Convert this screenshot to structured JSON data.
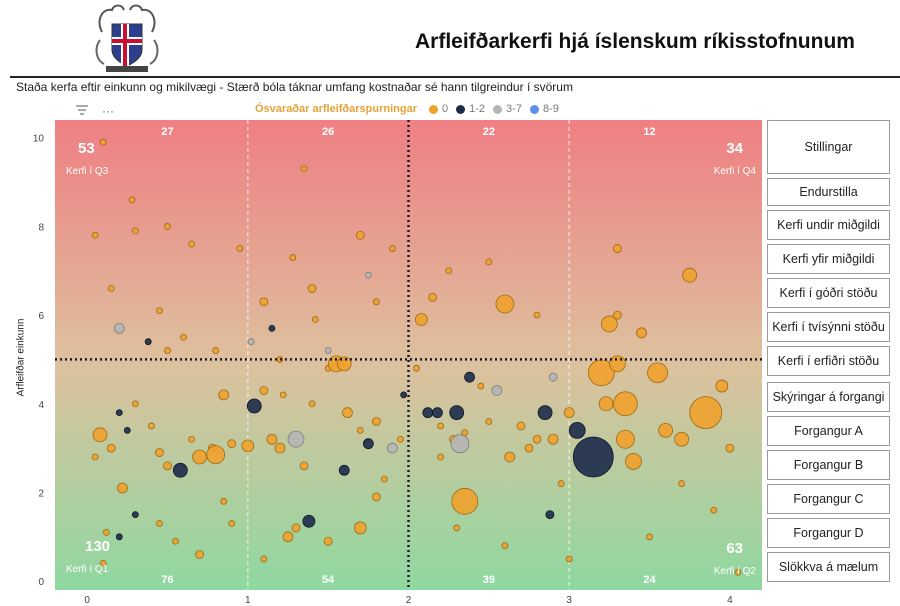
{
  "header": {
    "title": "Arfleifðarkerfi hjá íslenskum ríkisstofnunum",
    "subtitle": "Staða kerfa eftir einkunn og mikilvægi - Stærð bóla táknar umfang kostnaðar sé hann tilgreindur í svörum"
  },
  "toolbar": {
    "filter_icon": "filter-icon",
    "more_label": "···"
  },
  "legend": {
    "title": "Ósvaraðar arfleifðarspurningar",
    "items": [
      {
        "label": "0",
        "color": "#f0a12c"
      },
      {
        "label": "1-2",
        "color": "#1c2b4a"
      },
      {
        "label": "3-7",
        "color": "#b5b5b5"
      },
      {
        "label": "8-9",
        "color": "#5b8ff0"
      }
    ]
  },
  "quadrants": {
    "q3": {
      "count": "53",
      "label": "Kerfi í Q3"
    },
    "q4": {
      "count": "34",
      "label": "Kerfi í Q4"
    },
    "q1": {
      "count": "130",
      "label": "Kerfi í Q1"
    },
    "q2": {
      "count": "63",
      "label": "Kerfi í Q2"
    }
  },
  "buttons": [
    "Stillingar",
    "Endurstilla",
    "Kerfi undir miðgildi",
    "Kerfi yfir miðgildi",
    "Kerfi í góðri stöðu",
    "Kerfi í tvísýnni stöðu",
    "Kerfi í erfiðri stöðu",
    "Skýringar á forgangi",
    "Forgangur A",
    "Forgangur B",
    "Forgangur C",
    "Forgangur D",
    "Slökkva á mælum"
  ],
  "chart_data": {
    "type": "scatter",
    "ylabel": "Arfleifðar einkunn",
    "xlabel": "",
    "xlim": [
      -0.2,
      4.2
    ],
    "ylim": [
      -0.2,
      10.4
    ],
    "xticks": [
      "0",
      "1",
      "2",
      "3",
      "4"
    ],
    "yticks": [
      "0",
      "2",
      "4",
      "6",
      "8",
      "10"
    ],
    "median_x": 2,
    "median_y": 5,
    "top_counts": [
      "27",
      "26",
      "22",
      "12"
    ],
    "bottom_counts": [
      "76",
      "54",
      "39",
      "24"
    ],
    "colors": {
      "top": "#ef7f83",
      "mid": "#ddc19e",
      "bottom": "#8fd8a0",
      "orange": "#f0a12c",
      "navy": "#1c2b4a",
      "gray": "#b5b5b5"
    },
    "points": [
      [
        0.08,
        3.3,
        7,
        "o"
      ],
      [
        0.15,
        3.0,
        4,
        "o"
      ],
      [
        0.2,
        3.8,
        3,
        "n"
      ],
      [
        0.22,
        2.1,
        5,
        "o"
      ],
      [
        0.3,
        4.0,
        3,
        "o"
      ],
      [
        0.4,
        3.5,
        3,
        "o"
      ],
      [
        0.45,
        2.9,
        4,
        "o"
      ],
      [
        0.5,
        2.6,
        4,
        "o"
      ],
      [
        0.58,
        2.5,
        7,
        "n"
      ],
      [
        0.65,
        3.2,
        3,
        "o"
      ],
      [
        0.7,
        2.8,
        7,
        "o"
      ],
      [
        0.78,
        3.0,
        4,
        "o"
      ],
      [
        0.8,
        2.85,
        9,
        "o"
      ],
      [
        0.85,
        4.2,
        5,
        "o"
      ],
      [
        0.9,
        3.1,
        4,
        "o"
      ],
      [
        1.0,
        3.05,
        6,
        "o"
      ],
      [
        1.04,
        3.95,
        7,
        "n"
      ],
      [
        1.1,
        4.3,
        4,
        "o"
      ],
      [
        1.15,
        3.2,
        5,
        "o"
      ],
      [
        1.2,
        3.0,
        5,
        "o"
      ],
      [
        1.22,
        4.2,
        3,
        "o"
      ],
      [
        1.3,
        3.2,
        8,
        "g"
      ],
      [
        1.35,
        2.6,
        4,
        "o"
      ],
      [
        1.4,
        4.0,
        3,
        "o"
      ],
      [
        1.5,
        4.8,
        3,
        "o"
      ],
      [
        1.55,
        4.9,
        8,
        "o"
      ],
      [
        1.62,
        3.8,
        5,
        "o"
      ],
      [
        1.7,
        3.4,
        3,
        "o"
      ],
      [
        1.75,
        3.1,
        5,
        "n"
      ],
      [
        1.8,
        3.6,
        4,
        "o"
      ],
      [
        1.9,
        3.0,
        5,
        "g"
      ],
      [
        1.95,
        3.2,
        3,
        "o"
      ],
      [
        1.97,
        4.2,
        3,
        "n"
      ],
      [
        0.1,
        0.4,
        3,
        "o"
      ],
      [
        0.12,
        1.1,
        3,
        "o"
      ],
      [
        0.2,
        1.0,
        3,
        "n"
      ],
      [
        0.3,
        1.5,
        3,
        "n"
      ],
      [
        0.45,
        1.3,
        3,
        "o"
      ],
      [
        0.55,
        0.9,
        3,
        "o"
      ],
      [
        0.7,
        0.6,
        4,
        "o"
      ],
      [
        0.85,
        1.8,
        3,
        "o"
      ],
      [
        0.9,
        1.3,
        3,
        "o"
      ],
      [
        1.1,
        0.5,
        3,
        "o"
      ],
      [
        1.25,
        1.0,
        5,
        "o"
      ],
      [
        1.3,
        1.2,
        4,
        "o"
      ],
      [
        1.38,
        1.35,
        6,
        "n"
      ],
      [
        1.5,
        0.9,
        4,
        "o"
      ],
      [
        1.7,
        1.2,
        6,
        "o"
      ],
      [
        1.8,
        1.9,
        4,
        "o"
      ],
      [
        1.6,
        2.5,
        5,
        "n"
      ],
      [
        1.85,
        2.3,
        3,
        "o"
      ],
      [
        0.05,
        2.8,
        3,
        "o"
      ],
      [
        0.25,
        3.4,
        3,
        "n"
      ],
      [
        0.05,
        7.8,
        3,
        "o"
      ],
      [
        0.15,
        6.6,
        3,
        "o"
      ],
      [
        0.2,
        5.7,
        5,
        "g"
      ],
      [
        0.3,
        7.9,
        3,
        "o"
      ],
      [
        0.38,
        5.4,
        3,
        "n"
      ],
      [
        0.45,
        6.1,
        3,
        "o"
      ],
      [
        0.5,
        5.2,
        3,
        "o"
      ],
      [
        0.6,
        5.5,
        3,
        "o"
      ],
      [
        0.65,
        7.6,
        3,
        "o"
      ],
      [
        0.8,
        5.2,
        3,
        "o"
      ],
      [
        0.95,
        7.5,
        3,
        "o"
      ],
      [
        1.02,
        5.4,
        3,
        "g"
      ],
      [
        1.1,
        6.3,
        4,
        "o"
      ],
      [
        1.15,
        5.7,
        3,
        "n"
      ],
      [
        1.2,
        5.0,
        3,
        "o"
      ],
      [
        1.28,
        7.3,
        3,
        "o"
      ],
      [
        1.35,
        9.3,
        3,
        "o"
      ],
      [
        1.4,
        6.6,
        4,
        "o"
      ],
      [
        1.42,
        5.9,
        3,
        "o"
      ],
      [
        1.5,
        5.2,
        3,
        "g"
      ],
      [
        1.6,
        4.9,
        7,
        "o"
      ],
      [
        1.7,
        7.8,
        4,
        "o"
      ],
      [
        1.75,
        6.9,
        3,
        "g"
      ],
      [
        1.8,
        6.3,
        3,
        "o"
      ],
      [
        1.9,
        7.5,
        3,
        "o"
      ],
      [
        0.1,
        9.9,
        3,
        "o"
      ],
      [
        0.28,
        8.6,
        3,
        "o"
      ],
      [
        0.5,
        8.0,
        3,
        "o"
      ],
      [
        2.05,
        4.8,
        3,
        "o"
      ],
      [
        2.08,
        5.9,
        6,
        "o"
      ],
      [
        2.12,
        3.8,
        5,
        "n"
      ],
      [
        2.15,
        6.4,
        4,
        "o"
      ],
      [
        2.18,
        3.8,
        5,
        "n"
      ],
      [
        2.2,
        3.5,
        3,
        "o"
      ],
      [
        2.25,
        7.0,
        3,
        "o"
      ],
      [
        2.28,
        3.2,
        4,
        "o"
      ],
      [
        2.3,
        3.8,
        7,
        "n"
      ],
      [
        2.35,
        3.35,
        3,
        "o"
      ],
      [
        2.32,
        3.1,
        9,
        "g"
      ],
      [
        2.35,
        1.8,
        13,
        "o"
      ],
      [
        2.38,
        4.6,
        5,
        "n"
      ],
      [
        2.45,
        4.4,
        3,
        "o"
      ],
      [
        2.5,
        3.6,
        3,
        "o"
      ],
      [
        2.55,
        4.3,
        5,
        "g"
      ],
      [
        2.6,
        6.25,
        9,
        "o"
      ],
      [
        2.63,
        2.8,
        5,
        "o"
      ],
      [
        2.7,
        3.5,
        4,
        "o"
      ],
      [
        2.75,
        3.0,
        4,
        "o"
      ],
      [
        2.8,
        3.2,
        4,
        "o"
      ],
      [
        2.85,
        3.8,
        7,
        "n"
      ],
      [
        2.88,
        1.5,
        4,
        "n"
      ],
      [
        2.9,
        3.2,
        5,
        "o"
      ],
      [
        2.9,
        4.6,
        4,
        "g"
      ],
      [
        3.0,
        3.8,
        5,
        "o"
      ],
      [
        3.05,
        3.4,
        8,
        "n"
      ],
      [
        3.15,
        2.8,
        20,
        "n"
      ],
      [
        3.2,
        4.7,
        13,
        "o"
      ],
      [
        3.23,
        4.0,
        7,
        "o"
      ],
      [
        3.25,
        5.8,
        8,
        "o"
      ],
      [
        3.3,
        4.9,
        8,
        "o"
      ],
      [
        3.35,
        3.2,
        9,
        "o"
      ],
      [
        3.35,
        4.0,
        12,
        "o"
      ],
      [
        3.4,
        2.7,
        8,
        "o"
      ],
      [
        3.45,
        5.6,
        5,
        "o"
      ],
      [
        3.55,
        4.7,
        10,
        "o"
      ],
      [
        3.6,
        3.4,
        7,
        "o"
      ],
      [
        3.7,
        3.2,
        7,
        "o"
      ],
      [
        3.75,
        6.9,
        7,
        "o"
      ],
      [
        3.85,
        3.8,
        16,
        "o"
      ],
      [
        3.95,
        4.4,
        6,
        "o"
      ],
      [
        4.0,
        3.0,
        4,
        "o"
      ],
      [
        3.3,
        7.5,
        4,
        "o"
      ],
      [
        2.8,
        6.0,
        3,
        "o"
      ],
      [
        2.5,
        7.2,
        3,
        "o"
      ],
      [
        3.3,
        6.0,
        4,
        "o"
      ],
      [
        2.2,
        2.8,
        3,
        "o"
      ],
      [
        2.3,
        1.2,
        3,
        "o"
      ],
      [
        2.6,
        0.8,
        3,
        "o"
      ],
      [
        3.0,
        0.5,
        3,
        "o"
      ],
      [
        3.5,
        1.0,
        3,
        "o"
      ],
      [
        3.9,
        1.6,
        3,
        "o"
      ],
      [
        4.05,
        0.2,
        3,
        "o"
      ],
      [
        2.95,
        2.2,
        3,
        "o"
      ],
      [
        3.7,
        2.2,
        3,
        "o"
      ]
    ]
  }
}
